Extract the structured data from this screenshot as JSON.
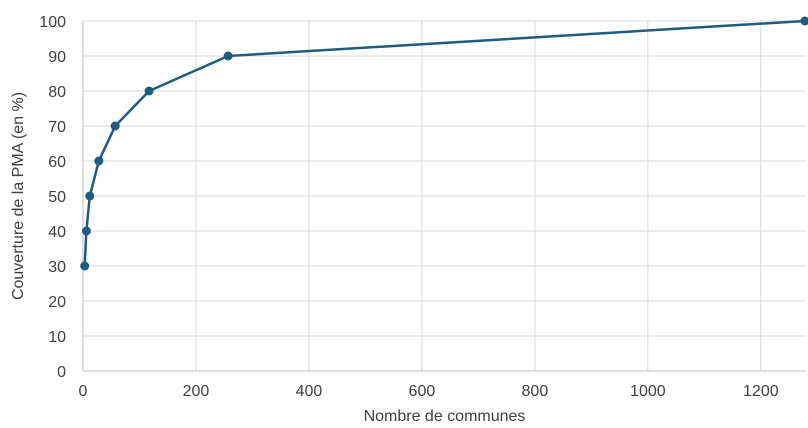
{
  "chart_data": {
    "type": "line",
    "title": "",
    "xlabel": "Nombre de communes",
    "ylabel": "Couverture de la PMA (en %)",
    "xlim": [
      0,
      1280
    ],
    "ylim": [
      0,
      100
    ],
    "x_ticks": [
      0,
      200,
      400,
      600,
      800,
      1000,
      1200
    ],
    "y_ticks": [
      0,
      10,
      20,
      30,
      40,
      50,
      60,
      70,
      80,
      90,
      100
    ],
    "grid": true,
    "legend": "none",
    "series": [
      {
        "color": "#1f5c7f",
        "x": [
          3,
          6,
          12,
          28,
          57,
          117,
          257,
          1278
        ],
        "y": [
          30,
          40,
          50,
          60,
          70,
          80,
          90,
          100
        ]
      }
    ]
  }
}
